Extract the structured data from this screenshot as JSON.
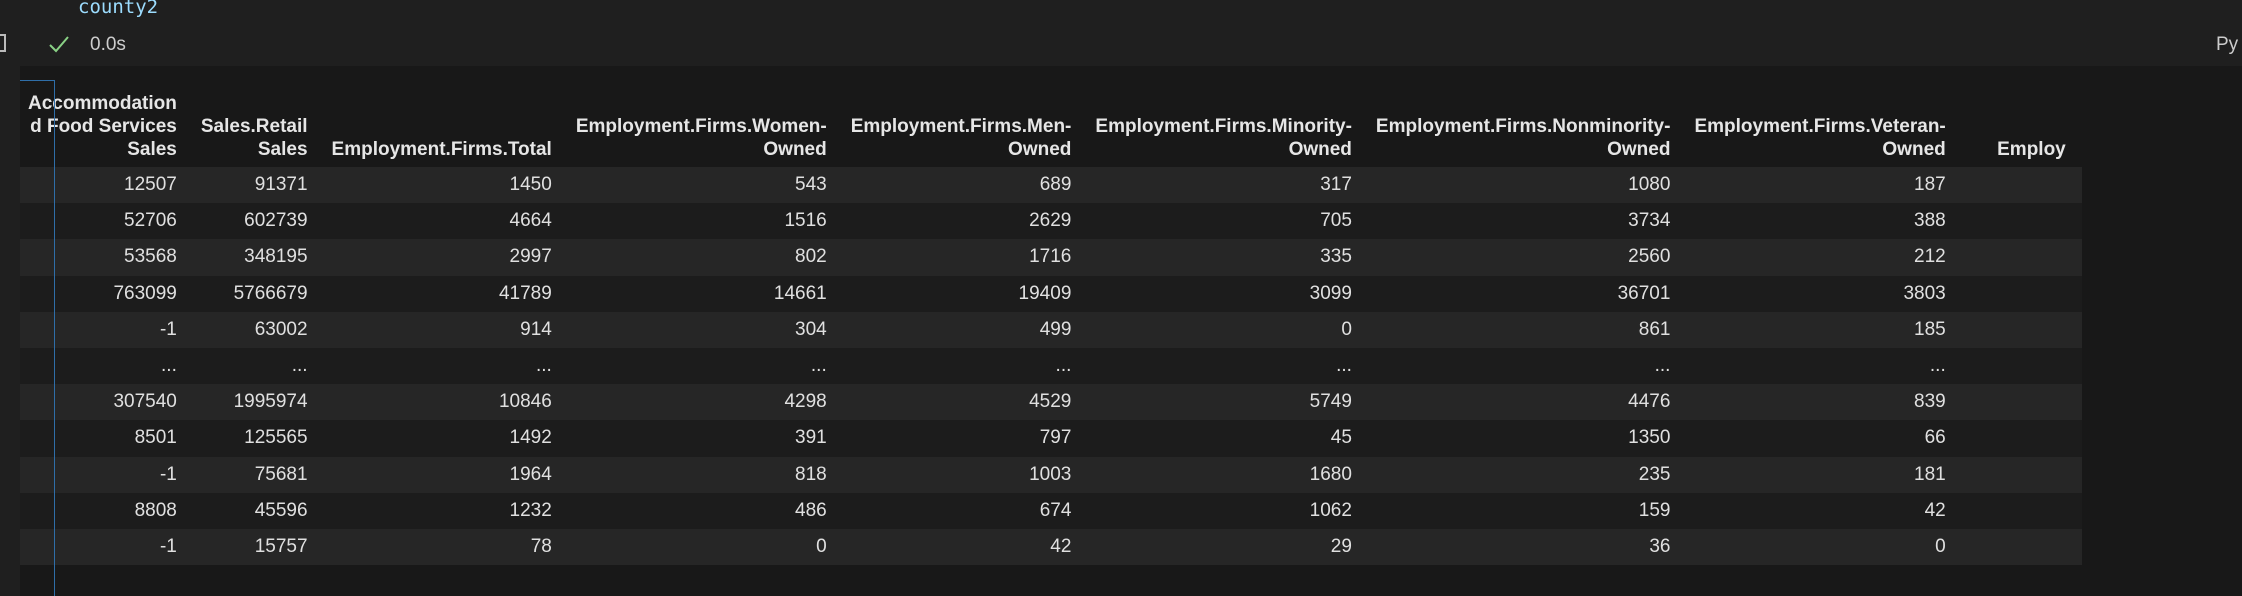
{
  "code": {
    "text": "county2"
  },
  "execution": {
    "time": "0.0s",
    "kernel_label": "Py",
    "status_icon": "check-icon"
  },
  "table": {
    "columns": [
      {
        "id": "c0",
        "lines": [
          "Accommodation",
          "d Food Services",
          "Sales"
        ]
      },
      {
        "id": "c1",
        "lines": [
          "Sales.Retail",
          "Sales"
        ]
      },
      {
        "id": "c2",
        "lines": [
          "Employment.Firms.Total"
        ]
      },
      {
        "id": "c3",
        "lines": [
          "Employment.Firms.Women-",
          "Owned"
        ]
      },
      {
        "id": "c4",
        "lines": [
          "Employment.Firms.Men-",
          "Owned"
        ]
      },
      {
        "id": "c5",
        "lines": [
          "Employment.Firms.Minority-",
          "Owned"
        ]
      },
      {
        "id": "c6",
        "lines": [
          "Employment.Firms.Nonminority-",
          "Owned"
        ]
      },
      {
        "id": "c7",
        "lines": [
          "Employment.Firms.Veteran-",
          "Owned"
        ]
      },
      {
        "id": "c8",
        "lines": [
          "Employ"
        ]
      }
    ],
    "rows": [
      [
        "12507",
        "91371",
        "1450",
        "543",
        "689",
        "317",
        "1080",
        "187",
        ""
      ],
      [
        "52706",
        "602739",
        "4664",
        "1516",
        "2629",
        "705",
        "3734",
        "388",
        ""
      ],
      [
        "53568",
        "348195",
        "2997",
        "802",
        "1716",
        "335",
        "2560",
        "212",
        ""
      ],
      [
        "763099",
        "5766679",
        "41789",
        "14661",
        "19409",
        "3099",
        "36701",
        "3803",
        ""
      ],
      [
        "-1",
        "63002",
        "914",
        "304",
        "499",
        "0",
        "861",
        "185",
        ""
      ],
      [
        "...",
        "...",
        "...",
        "...",
        "...",
        "...",
        "...",
        "...",
        ""
      ],
      [
        "307540",
        "1995974",
        "10846",
        "4298",
        "4529",
        "5749",
        "4476",
        "839",
        ""
      ],
      [
        "8501",
        "125565",
        "1492",
        "391",
        "797",
        "45",
        "1350",
        "66",
        ""
      ],
      [
        "-1",
        "75681",
        "1964",
        "818",
        "1003",
        "1680",
        "235",
        "181",
        ""
      ],
      [
        "8808",
        "45596",
        "1232",
        "486",
        "674",
        "1062",
        "159",
        "42",
        ""
      ],
      [
        "-1",
        "15757",
        "78",
        "0",
        "42",
        "29",
        "36",
        "0",
        ""
      ]
    ]
  },
  "colors": {
    "background": "#1f1f1f",
    "output": "#181818",
    "row_alt": "#262626",
    "accent": "#2f6ea8",
    "check": "#89d185",
    "code": "#9cdcfe"
  }
}
